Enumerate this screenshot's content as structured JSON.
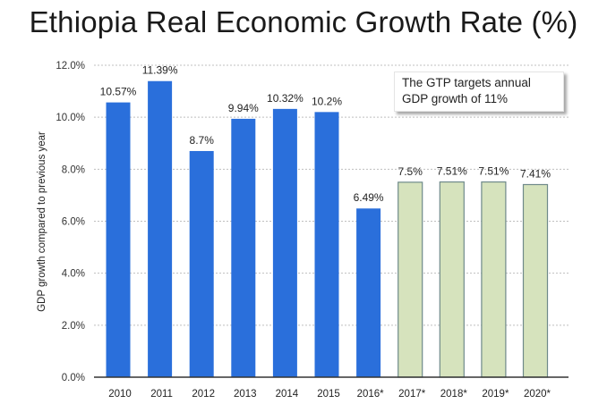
{
  "chart_data": {
    "type": "bar",
    "title": "Ethiopia Real Economic Growth Rate (%)",
    "xlabel": "",
    "ylabel": "GDP growth compared to previous year",
    "ylim": [
      0,
      12
    ],
    "yticks": [
      "0.0%",
      "2.0%",
      "4.0%",
      "6.0%",
      "8.0%",
      "10.0%",
      "12.0%"
    ],
    "ytick_values": [
      0,
      2,
      4,
      6,
      8,
      10,
      12
    ],
    "grid": true,
    "categories": [
      "2010",
      "2011",
      "2012",
      "2013",
      "2014",
      "2015",
      "2016*",
      "2017*",
      "2018*",
      "2019*",
      "2020*"
    ],
    "values": [
      10.57,
      11.39,
      8.7,
      9.94,
      10.32,
      10.2,
      6.49,
      7.5,
      7.51,
      7.51,
      7.41
    ],
    "data_labels": [
      "10.57%",
      "11.39%",
      "8.7%",
      "9.94%",
      "10.32%",
      "10.2%",
      "6.49%",
      "7.5%",
      "7.51%",
      "7.51%",
      "7.41%"
    ],
    "kinds": [
      "actual",
      "actual",
      "actual",
      "actual",
      "actual",
      "actual",
      "actual",
      "forecast",
      "forecast",
      "forecast",
      "forecast"
    ],
    "colors": {
      "actual": "#2a6fdb",
      "forecast": "#d6e3bd",
      "forecast_border": "#6f8a8a",
      "grid": "#bfbfbf",
      "axis": "#333333"
    },
    "annotation": {
      "line1": "The GTP targets annual",
      "line2": "GDP growth of 11%"
    }
  }
}
